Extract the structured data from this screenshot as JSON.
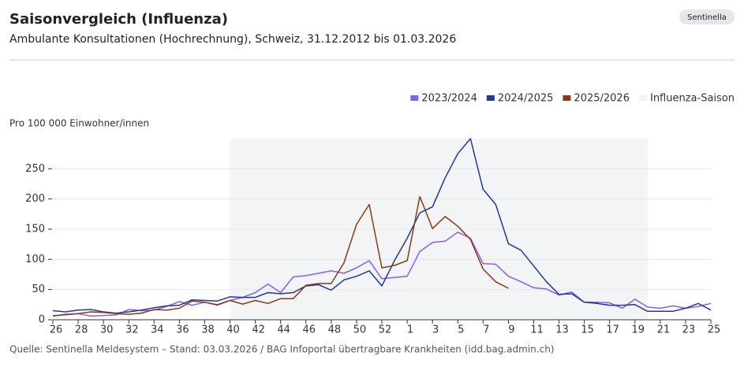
{
  "chart_data": {
    "type": "line",
    "title": "Saisonvergleich (Influenza)",
    "subtitle": "Ambulante Konsultationen (Hochrechnung), Schweiz, 31.12.2012 bis 01.03.2026",
    "badge": "Sentinella",
    "y_label": "Pro 100 000 Einwohner/innen",
    "source": "Quelle: Sentinella Meldesystem – Stand: 03.03.2026 / BAG Infoportal übertragbare Krankheiten (idd.bag.admin.ch)",
    "categories": [
      "26",
      null,
      "28",
      null,
      "30",
      null,
      "32",
      null,
      "34",
      null,
      "36",
      null,
      "38",
      null,
      "40",
      null,
      "42",
      null,
      "44",
      null,
      "46",
      null,
      "48",
      null,
      "50",
      null,
      "52",
      null,
      "1",
      null,
      "3",
      null,
      "5",
      null,
      "7",
      null,
      "9",
      null,
      "11",
      null,
      "13",
      null,
      "15",
      null,
      "17",
      null,
      "19",
      null,
      "21",
      null,
      "23",
      null,
      "25"
    ],
    "series": [
      {
        "name": "2023/2024",
        "color": "#8b5cf6",
        "values": [
          7,
          8,
          10,
          6,
          7,
          8,
          17,
          15,
          16,
          22,
          30,
          24,
          29,
          24,
          32,
          37,
          45,
          59,
          45,
          71,
          73,
          77,
          81,
          77,
          86,
          98,
          68,
          70,
          72,
          113,
          128,
          130,
          145,
          135,
          93,
          92,
          72,
          63,
          53,
          51,
          41,
          46,
          29,
          29,
          28,
          19,
          34,
          21,
          19,
          23,
          19,
          22,
          27
        ]
      },
      {
        "name": "2024/2025",
        "color": "#1e3a9e",
        "values": [
          15,
          13,
          16,
          17,
          13,
          11,
          13,
          16,
          20,
          23,
          24,
          33,
          32,
          31,
          38,
          37,
          37,
          45,
          43,
          45,
          56,
          58,
          49,
          66,
          72,
          81,
          56,
          98,
          135,
          177,
          187,
          235,
          275,
          300,
          216,
          191,
          126,
          115,
          89,
          63,
          42,
          43,
          29,
          27,
          24,
          24,
          25,
          14,
          14,
          14,
          19,
          27,
          16
        ]
      },
      {
        "name": "2025/2026",
        "color": "#8b3a0f",
        "values": [
          6,
          9,
          10,
          13,
          12,
          10,
          9,
          11,
          17,
          16,
          19,
          31,
          29,
          25,
          32,
          26,
          32,
          27,
          35,
          35,
          57,
          60,
          60,
          94,
          158,
          191,
          86,
          90,
          98,
          204,
          151,
          171,
          155,
          133,
          84,
          63,
          52,
          null,
          null,
          null,
          null,
          null,
          null,
          null,
          null,
          null,
          null,
          null,
          null,
          null,
          null,
          null,
          null
        ]
      }
    ],
    "season": {
      "name": "Influenza-Saison",
      "color": "#f3f4f6"
    },
    "ylim": [
      0,
      300
    ],
    "yticks": [
      0,
      50,
      100,
      150,
      200,
      250
    ],
    "grid": true
  }
}
